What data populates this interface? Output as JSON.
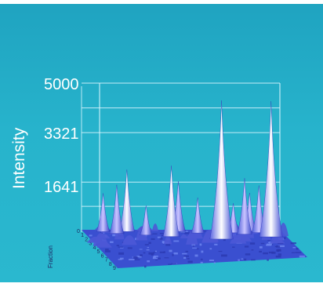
{
  "chart_data": {
    "type": "surface-3d",
    "title": "",
    "ylabel": "Intensity",
    "depth_label": "Fraction",
    "zlim": [
      0,
      5000
    ],
    "z_ticks": [
      1641,
      3321,
      5000
    ],
    "z_tick_labels": [
      "1641",
      "3321",
      "5000"
    ],
    "depth_ticks": [
      "0",
      "1",
      "2",
      "3",
      "4",
      "5",
      "6",
      "7",
      "8",
      "9"
    ],
    "grid": true,
    "peaks": [
      {
        "x": 0.1,
        "depth": 0.05,
        "value": 1300
      },
      {
        "x": 0.16,
        "depth": 0.1,
        "value": 1650
      },
      {
        "x": 0.22,
        "depth": 0.05,
        "value": 2100
      },
      {
        "x": 0.3,
        "depth": 0.15,
        "value": 1000
      },
      {
        "x": 0.42,
        "depth": 0.2,
        "value": 2400
      },
      {
        "x": 0.48,
        "depth": 0.05,
        "value": 1700
      },
      {
        "x": 0.57,
        "depth": 0.1,
        "value": 1200
      },
      {
        "x": 0.66,
        "depth": 0.3,
        "value": 4700
      },
      {
        "x": 0.75,
        "depth": 0.1,
        "value": 1000
      },
      {
        "x": 0.8,
        "depth": 0.15,
        "value": 1900
      },
      {
        "x": 0.84,
        "depth": 0.05,
        "value": 1300
      },
      {
        "x": 0.88,
        "depth": 0.1,
        "value": 1600
      },
      {
        "x": 0.92,
        "depth": 0.25,
        "value": 4600
      },
      {
        "x": 0.97,
        "depth": 0.05,
        "value": 800
      }
    ]
  },
  "colors": {
    "background": "#27b3cc",
    "surface_base": "#4a5ad8",
    "surface_peak": "#ffffff",
    "grid": "#dff7ff",
    "floor": "#3a4fd0"
  }
}
